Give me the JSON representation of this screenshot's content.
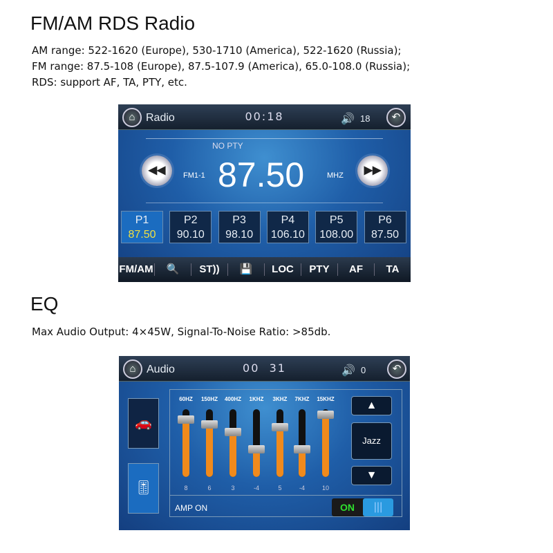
{
  "section1": {
    "title": "FM/AM RDS Radio",
    "lines": [
      "AM range: 522-1620 (Europe), 530-1710 (America), 522-1620 (Russia);",
      "FM range: 87.5-108 (Europe), 87.5-107.9 (America), 65.0-108.0 (Russia);",
      "RDS: support AF, TA, PTY, etc."
    ]
  },
  "radio": {
    "title": "Radio",
    "clock": "00:18",
    "volume": "18",
    "pty": "NO PTY",
    "band": "FM1-1",
    "frequency": "87.50",
    "unit": "MHZ",
    "presets": [
      {
        "label": "P1",
        "freq": "87.50",
        "active": true
      },
      {
        "label": "P2",
        "freq": "90.10"
      },
      {
        "label": "P3",
        "freq": "98.10"
      },
      {
        "label": "P4",
        "freq": "106.10"
      },
      {
        "label": "P5",
        "freq": "108.00"
      },
      {
        "label": "P6",
        "freq": "87.50"
      }
    ],
    "toolbar": [
      {
        "label": "FM/AM",
        "icon": "band-icon"
      },
      {
        "label": "🔍",
        "icon": "search-icon"
      },
      {
        "label": "ST))",
        "icon": "stereo-icon"
      },
      {
        "label": "💾",
        "icon": "save-icon"
      },
      {
        "label": "LOC",
        "icon": "loc-icon"
      },
      {
        "label": "PTY",
        "icon": "pty"
      },
      {
        "label": "AF",
        "icon": "af"
      },
      {
        "label": "TA",
        "icon": "ta"
      }
    ]
  },
  "section2": {
    "title": "EQ",
    "line": "Max Audio Output: 4×45W, Signal-To-Noise Ratio: >85db."
  },
  "audio": {
    "title": "Audio",
    "clock": "00  31",
    "volume": "0",
    "preset": "Jazz",
    "amp_label": "AMP ON",
    "toggle_label": "ON",
    "toggle_on": true,
    "accent": "#f08a1c",
    "bands": [
      {
        "freq": "60HZ",
        "value": 8
      },
      {
        "freq": "150HZ",
        "value": 6
      },
      {
        "freq": "400HZ",
        "value": 3
      },
      {
        "freq": "1KHZ",
        "value": -4
      },
      {
        "freq": "3KHZ",
        "value": 5
      },
      {
        "freq": "7KHZ",
        "value": -4
      },
      {
        "freq": "15KHZ",
        "value": 10
      }
    ],
    "range": [
      -10,
      10
    ]
  }
}
